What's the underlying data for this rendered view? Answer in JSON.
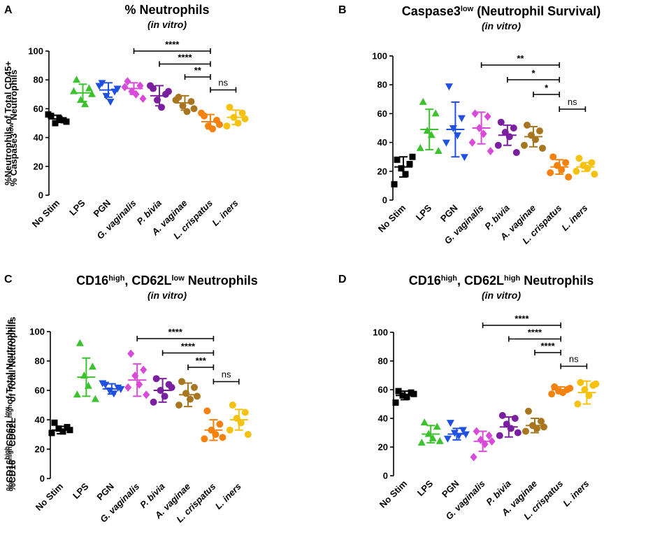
{
  "chart_data": [
    {
      "type": "scatter",
      "panel_label": "A",
      "title": [
        {
          "t": "% Neutrophils",
          "sup": false
        }
      ],
      "subtitle": "(in vitro)",
      "ylabel": [
        {
          "t": "%Neutrophils of Total CD45+",
          "sup": false
        }
      ],
      "ylim": [
        0,
        100
      ],
      "yticks": [
        "0",
        "20",
        "40",
        "60",
        "80",
        "100"
      ],
      "categories": [
        "No Stim",
        "LPS",
        "PGN",
        "G. vaginalis",
        "P. bivia",
        "A. vaginae",
        "L. crispatus",
        "L. iners"
      ],
      "series": [
        {
          "name": "No Stim",
          "color": "#000000",
          "marker": "square",
          "values": [
            55,
            52,
            50,
            53,
            56,
            51
          ],
          "mean": 53,
          "sd": 2.5
        },
        {
          "name": "LPS",
          "color": "#3CC22E",
          "marker": "triangle",
          "values": [
            80,
            74,
            66,
            63,
            72,
            70
          ],
          "mean": 71,
          "sd": 6
        },
        {
          "name": "PGN",
          "color": "#1F50E0",
          "marker": "triangle-down",
          "values": [
            78,
            72,
            69,
            65,
            76,
            74
          ],
          "mean": 73,
          "sd": 5
        },
        {
          "name": "G. vaginalis",
          "color": "#D84BD8",
          "marker": "diamond",
          "values": [
            79,
            76,
            72,
            70,
            75,
            67
          ],
          "mean": 74,
          "sd": 4
        },
        {
          "name": "P. bivia",
          "color": "#7A1FA0",
          "marker": "circle",
          "values": [
            74,
            70,
            66,
            61,
            76,
            72
          ],
          "mean": 69,
          "sd": 7
        },
        {
          "name": "A. vaginae",
          "color": "#A87620",
          "marker": "circle",
          "values": [
            68,
            65,
            62,
            58,
            66,
            60
          ],
          "mean": 64,
          "sd": 5
        },
        {
          "name": "L. crispatus",
          "color": "#F5820F",
          "marker": "circle",
          "values": [
            55,
            52,
            48,
            46,
            57,
            49
          ],
          "mean": 51,
          "sd": 5
        },
        {
          "name": "L. iners",
          "color": "#F5C211",
          "marker": "circle",
          "values": [
            61,
            57,
            54,
            50,
            48,
            53
          ],
          "mean": 54,
          "sd": 5
        }
      ],
      "brackets": [
        {
          "from": 3,
          "to": 6,
          "label": "****"
        },
        {
          "from": 4,
          "to": 6,
          "label": "****"
        },
        {
          "from": 5,
          "to": 6,
          "label": "**"
        },
        {
          "from": 6,
          "to": 7,
          "label": "ns"
        }
      ]
    },
    {
      "type": "scatter",
      "panel_label": "B",
      "title": [
        {
          "t": "Caspase3",
          "sup": false
        },
        {
          "t": "low",
          "sup": true
        },
        {
          "t": " (Neutrophil Survival)",
          "sup": false
        }
      ],
      "subtitle": "(in vitro)",
      "ylabel": [
        {
          "t": "% Caspase3",
          "sup": false
        },
        {
          "t": "low",
          "sup": true
        },
        {
          "t": " Neutrophils",
          "sup": false
        }
      ],
      "ylim": [
        0,
        100
      ],
      "yticks": [
        "0",
        "20",
        "40",
        "60",
        "80",
        "100"
      ],
      "categories": [
        "No Stim",
        "LPS",
        "PGN",
        "G. vaginalis",
        "P. bivia",
        "A. vaginae",
        "L. crispatus",
        "L. iners"
      ],
      "series": [
        {
          "name": "No Stim",
          "color": "#000000",
          "marker": "square",
          "values": [
            28,
            25,
            22,
            18,
            11,
            30
          ],
          "mean": 23,
          "sd": 7
        },
        {
          "name": "LPS",
          "color": "#3CC22E",
          "marker": "triangle",
          "values": [
            68,
            60,
            48,
            45,
            36,
            34
          ],
          "mean": 49,
          "sd": 14
        },
        {
          "name": "PGN",
          "color": "#1F50E0",
          "marker": "triangle-down",
          "values": [
            79,
            57,
            50,
            45,
            40,
            30
          ],
          "mean": 49,
          "sd": 19
        },
        {
          "name": "G. vaginalis",
          "color": "#D84BD8",
          "marker": "diamond",
          "values": [
            60,
            58,
            50,
            46,
            40,
            34
          ],
          "mean": 50,
          "sd": 11
        },
        {
          "name": "P. bivia",
          "color": "#7A1FA0",
          "marker": "circle",
          "values": [
            54,
            50,
            47,
            44,
            38,
            33
          ],
          "mean": 45,
          "sd": 7
        },
        {
          "name": "A. vaginae",
          "color": "#A87620",
          "marker": "circle",
          "values": [
            52,
            48,
            45,
            42,
            38,
            36
          ],
          "mean": 44,
          "sd": 7
        },
        {
          "name": "L. crispatus",
          "color": "#F5820F",
          "marker": "circle",
          "values": [
            30,
            26,
            24,
            21,
            19,
            16
          ],
          "mean": 23,
          "sd": 5
        },
        {
          "name": "L. iners",
          "color": "#F5C211",
          "marker": "circle",
          "values": [
            29,
            26,
            24,
            22,
            20,
            18
          ],
          "mean": 23,
          "sd": 3
        }
      ],
      "brackets": [
        {
          "from": 3,
          "to": 6,
          "label": "**"
        },
        {
          "from": 4,
          "to": 6,
          "label": "*"
        },
        {
          "from": 5,
          "to": 6,
          "label": "*"
        },
        {
          "from": 6,
          "to": 7,
          "label": "ns"
        }
      ]
    },
    {
      "type": "scatter",
      "panel_label": "C",
      "title": [
        {
          "t": "CD16",
          "sup": false
        },
        {
          "t": "high",
          "sup": true
        },
        {
          "t": ", CD62L",
          "sup": false
        },
        {
          "t": "low",
          "sup": true
        },
        {
          "t": " Neutrophils",
          "sup": false
        }
      ],
      "subtitle": "(in vitro)",
      "ylabel": [
        {
          "t": "%CD16",
          "sup": false
        },
        {
          "t": "high",
          "sup": true
        },
        {
          "t": "CD62L",
          "sup": false
        },
        {
          "t": "low",
          "sup": true
        },
        {
          "t": " of Total Neutrophils",
          "sup": false
        }
      ],
      "ylim": [
        0,
        100
      ],
      "yticks": [
        "0",
        "20",
        "40",
        "60",
        "80",
        "100"
      ],
      "categories": [
        "No Stim",
        "LPS",
        "PGN",
        "G. vaginalis",
        "P. bivia",
        "A. vaginae",
        "L. crispatus",
        "L. iners"
      ],
      "series": [
        {
          "name": "No Stim",
          "color": "#000000",
          "marker": "square",
          "values": [
            38,
            35,
            34,
            32,
            31,
            33
          ],
          "mean": 33,
          "sd": 2.5
        },
        {
          "name": "LPS",
          "color": "#3CC22E",
          "marker": "triangle",
          "values": [
            92,
            76,
            70,
            63,
            57,
            54
          ],
          "mean": 69,
          "sd": 13
        },
        {
          "name": "PGN",
          "color": "#1F50E0",
          "marker": "triangle-down",
          "values": [
            64,
            62,
            60,
            58,
            65,
            61
          ],
          "mean": 61,
          "sd": 3.5
        },
        {
          "name": "G. vaginalis",
          "color": "#D84BD8",
          "marker": "diamond",
          "values": [
            85,
            74,
            70,
            64,
            62,
            57
          ],
          "mean": 67,
          "sd": 11
        },
        {
          "name": "P. bivia",
          "color": "#7A1FA0",
          "marker": "circle",
          "values": [
            68,
            64,
            60,
            56,
            52,
            62
          ],
          "mean": 60,
          "sd": 8
        },
        {
          "name": "A. vaginae",
          "color": "#A87620",
          "marker": "circle",
          "values": [
            66,
            62,
            58,
            54,
            50,
            56
          ],
          "mean": 57,
          "sd": 8
        },
        {
          "name": "L. crispatus",
          "color": "#F5820F",
          "marker": "circle",
          "values": [
            46,
            37,
            33,
            30,
            27,
            28
          ],
          "mean": 33,
          "sd": 7
        },
        {
          "name": "L. iners",
          "color": "#F5C211",
          "marker": "circle",
          "values": [
            50,
            45,
            41,
            38,
            33,
            30
          ],
          "mean": 40,
          "sd": 7
        }
      ],
      "brackets": [
        {
          "from": 3,
          "to": 6,
          "label": "****"
        },
        {
          "from": 4,
          "to": 6,
          "label": "****"
        },
        {
          "from": 5,
          "to": 6,
          "label": "***"
        },
        {
          "from": 6,
          "to": 7,
          "label": "ns"
        }
      ]
    },
    {
      "type": "scatter",
      "panel_label": "D",
      "title": [
        {
          "t": "CD16",
          "sup": false
        },
        {
          "t": "high",
          "sup": true
        },
        {
          "t": ", CD62L",
          "sup": false
        },
        {
          "t": "high",
          "sup": true
        },
        {
          "t": " Neutrophils",
          "sup": false
        }
      ],
      "subtitle": "(in vitro)",
      "ylabel": [
        {
          "t": "%CD16",
          "sup": false
        },
        {
          "t": "high",
          "sup": true
        },
        {
          "t": "CD62L",
          "sup": false
        },
        {
          "t": "high",
          "sup": true
        },
        {
          "t": " of Total Neutrophils",
          "sup": false
        }
      ],
      "ylim": [
        0,
        100
      ],
      "yticks": [
        "0",
        "20",
        "40",
        "60",
        "80",
        "100"
      ],
      "categories": [
        "No Stim",
        "LPS",
        "PGN",
        "G. vaginalis",
        "P. bivia",
        "A. vaginae",
        "L. crispatus",
        "L. iners"
      ],
      "series": [
        {
          "name": "No Stim",
          "color": "#000000",
          "marker": "square",
          "values": [
            59,
            58,
            56,
            55,
            51,
            57
          ],
          "mean": 56,
          "sd": 3
        },
        {
          "name": "LPS",
          "color": "#3CC22E",
          "marker": "triangle",
          "values": [
            37,
            34,
            29,
            26,
            23,
            24
          ],
          "mean": 29,
          "sd": 6
        },
        {
          "name": "PGN",
          "color": "#1F50E0",
          "marker": "triangle-down",
          "values": [
            37,
            32,
            30,
            28,
            26,
            29
          ],
          "mean": 29,
          "sd": 4
        },
        {
          "name": "G. vaginalis",
          "color": "#D84BD8",
          "marker": "diamond",
          "values": [
            31,
            28,
            25,
            22,
            13,
            24
          ],
          "mean": 24,
          "sd": 7
        },
        {
          "name": "P. bivia",
          "color": "#7A1FA0",
          "marker": "circle",
          "values": [
            42,
            40,
            36,
            33,
            28,
            30
          ],
          "mean": 34,
          "sd": 7
        },
        {
          "name": "A. vaginae",
          "color": "#A87620",
          "marker": "circle",
          "values": [
            45,
            38,
            35,
            33,
            31,
            34
          ],
          "mean": 35,
          "sd": 5
        },
        {
          "name": "L. crispatus",
          "color": "#F5820F",
          "marker": "circle",
          "values": [
            62,
            60,
            59,
            58,
            57,
            61
          ],
          "mean": 60,
          "sd": 2
        },
        {
          "name": "L. iners",
          "color": "#F5C211",
          "marker": "circle",
          "values": [
            65,
            63,
            60,
            56,
            50,
            64
          ],
          "mean": 58,
          "sd": 8
        }
      ],
      "brackets": [
        {
          "from": 3,
          "to": 6,
          "label": "****"
        },
        {
          "from": 4,
          "to": 6,
          "label": "****"
        },
        {
          "from": 5,
          "to": 6,
          "label": "****"
        },
        {
          "from": 6,
          "to": 7,
          "label": "ns"
        }
      ]
    }
  ]
}
